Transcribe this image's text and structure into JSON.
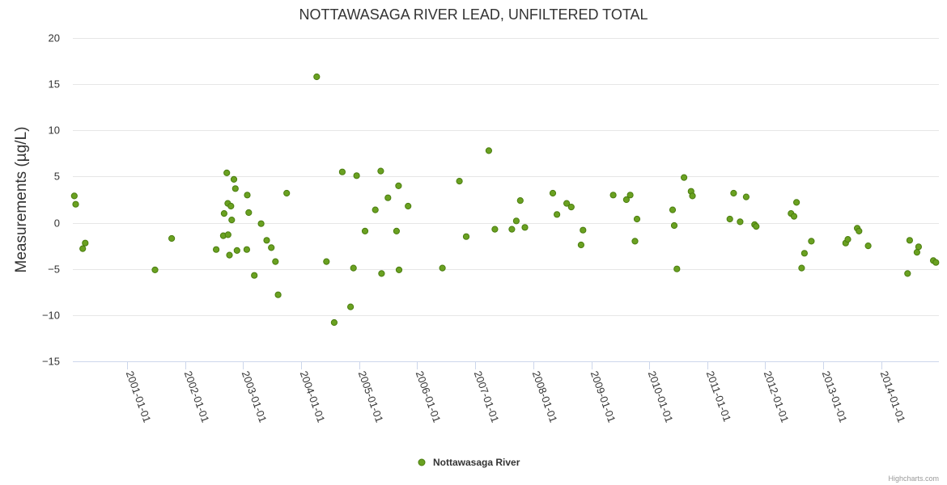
{
  "chart_data": {
    "type": "scatter",
    "title": "NOTTAWASAGA RIVER LEAD, UNFILTERED TOTAL",
    "ylabel": "Measurements (µg/L)",
    "xlabel": "",
    "ylim": [
      -15,
      20
    ],
    "y_ticks": [
      -15,
      -10,
      -5,
      0,
      5,
      10,
      15,
      20
    ],
    "xlim": [
      "2000-01-26",
      "2014-12-29"
    ],
    "x_ticks": [
      "2001-01-01",
      "2002-01-01",
      "2003-01-01",
      "2004-01-01",
      "2005-01-01",
      "2006-01-01",
      "2007-01-01",
      "2008-01-01",
      "2009-01-01",
      "2010-01-01",
      "2011-01-01",
      "2012-01-01",
      "2013-01-01",
      "2014-01-01"
    ],
    "grid": true,
    "legend_position": "bottom-center",
    "series": [
      {
        "name": "Nottawasaga River",
        "color": "#6aa121",
        "stroke": "#4a7d0f",
        "points": [
          {
            "x": "2000-02-04",
            "y": 2.9
          },
          {
            "x": "2000-02-13",
            "y": 2.0
          },
          {
            "x": "2000-03-28",
            "y": -2.8
          },
          {
            "x": "2000-04-13",
            "y": -2.2
          },
          {
            "x": "2001-06-26",
            "y": -5.1
          },
          {
            "x": "2001-10-09",
            "y": -1.7
          },
          {
            "x": "2002-07-16",
            "y": -2.9
          },
          {
            "x": "2002-08-30",
            "y": -1.4
          },
          {
            "x": "2002-09-04",
            "y": 1.0
          },
          {
            "x": "2002-09-21",
            "y": 5.4
          },
          {
            "x": "2002-09-27",
            "y": 2.1
          },
          {
            "x": "2002-09-29",
            "y": -1.3
          },
          {
            "x": "2002-10-08",
            "y": -3.5
          },
          {
            "x": "2002-10-17",
            "y": 1.8
          },
          {
            "x": "2002-10-22",
            "y": 0.3
          },
          {
            "x": "2002-11-05",
            "y": 4.7
          },
          {
            "x": "2002-11-14",
            "y": 3.7
          },
          {
            "x": "2002-11-24",
            "y": -3.0
          },
          {
            "x": "2003-01-25",
            "y": -2.9
          },
          {
            "x": "2003-01-28",
            "y": 3.0
          },
          {
            "x": "2003-02-06",
            "y": 1.1
          },
          {
            "x": "2003-03-13",
            "y": -5.7
          },
          {
            "x": "2003-04-25",
            "y": -0.1
          },
          {
            "x": "2003-05-30",
            "y": -1.9
          },
          {
            "x": "2003-06-28",
            "y": -2.7
          },
          {
            "x": "2003-07-24",
            "y": -4.2
          },
          {
            "x": "2003-08-10",
            "y": -7.8
          },
          {
            "x": "2003-10-03",
            "y": 3.2
          },
          {
            "x": "2004-04-09",
            "y": 15.8
          },
          {
            "x": "2004-06-09",
            "y": -4.2
          },
          {
            "x": "2004-07-28",
            "y": -10.8
          },
          {
            "x": "2004-09-17",
            "y": 5.5
          },
          {
            "x": "2004-11-08",
            "y": -9.1
          },
          {
            "x": "2004-11-26",
            "y": -4.9
          },
          {
            "x": "2004-12-16",
            "y": 5.1
          },
          {
            "x": "2005-02-07",
            "y": -0.9
          },
          {
            "x": "2005-08-24",
            "y": -0.9
          },
          {
            "x": "2005-04-13",
            "y": 1.4
          },
          {
            "x": "2005-05-17",
            "y": 5.6
          },
          {
            "x": "2005-05-22",
            "y": -5.5
          },
          {
            "x": "2005-07-01",
            "y": 2.7
          },
          {
            "x": "2005-09-06",
            "y": 4.0
          },
          {
            "x": "2005-09-09",
            "y": -5.1
          },
          {
            "x": "2005-11-05",
            "y": 1.8
          },
          {
            "x": "2006-06-09",
            "y": -4.9
          },
          {
            "x": "2006-09-24",
            "y": 4.5
          },
          {
            "x": "2006-11-06",
            "y": -1.5
          },
          {
            "x": "2007-03-28",
            "y": 7.8
          },
          {
            "x": "2007-05-05",
            "y": -0.7
          },
          {
            "x": "2007-08-20",
            "y": -0.7
          },
          {
            "x": "2007-09-17",
            "y": 0.2
          },
          {
            "x": "2007-10-12",
            "y": 2.4
          },
          {
            "x": "2007-11-10",
            "y": -0.5
          },
          {
            "x": "2008-05-04",
            "y": 3.2
          },
          {
            "x": "2008-05-30",
            "y": 0.9
          },
          {
            "x": "2008-07-30",
            "y": 2.1
          },
          {
            "x": "2008-08-28",
            "y": 1.7
          },
          {
            "x": "2008-10-29",
            "y": -2.4
          },
          {
            "x": "2008-11-10",
            "y": -0.8
          },
          {
            "x": "2009-05-19",
            "y": 3.0
          },
          {
            "x": "2009-08-10",
            "y": 2.5
          },
          {
            "x": "2009-09-03",
            "y": 3.0
          },
          {
            "x": "2009-10-03",
            "y": -2.0
          },
          {
            "x": "2009-10-16",
            "y": 0.4
          },
          {
            "x": "2010-05-28",
            "y": 1.4
          },
          {
            "x": "2010-06-07",
            "y": -0.3
          },
          {
            "x": "2010-06-24",
            "y": -5.0
          },
          {
            "x": "2010-08-08",
            "y": 4.9
          },
          {
            "x": "2010-09-21",
            "y": 3.4
          },
          {
            "x": "2010-09-30",
            "y": 2.9
          },
          {
            "x": "2011-05-23",
            "y": 0.4
          },
          {
            "x": "2011-06-16",
            "y": 3.2
          },
          {
            "x": "2011-07-27",
            "y": 0.1
          },
          {
            "x": "2011-09-03",
            "y": 2.8
          },
          {
            "x": "2011-10-26",
            "y": -0.2
          },
          {
            "x": "2011-11-05",
            "y": -0.4
          },
          {
            "x": "2012-06-11",
            "y": 1.0
          },
          {
            "x": "2012-06-30",
            "y": 0.7
          },
          {
            "x": "2012-07-16",
            "y": 2.2
          },
          {
            "x": "2012-08-17",
            "y": -4.9
          },
          {
            "x": "2012-09-04",
            "y": -3.3
          },
          {
            "x": "2012-10-17",
            "y": -2.0
          },
          {
            "x": "2013-05-21",
            "y": -2.2
          },
          {
            "x": "2013-06-04",
            "y": -1.8
          },
          {
            "x": "2013-08-02",
            "y": -0.6
          },
          {
            "x": "2013-08-13",
            "y": -0.9
          },
          {
            "x": "2013-10-10",
            "y": -2.5
          },
          {
            "x": "2014-06-15",
            "y": -5.5
          },
          {
            "x": "2014-06-28",
            "y": -1.9
          },
          {
            "x": "2014-08-13",
            "y": -3.2
          },
          {
            "x": "2014-08-23",
            "y": -2.6
          },
          {
            "x": "2014-11-24",
            "y": -4.1
          },
          {
            "x": "2014-12-10",
            "y": -4.3
          }
        ]
      }
    ]
  },
  "credits": "Highcharts.com"
}
